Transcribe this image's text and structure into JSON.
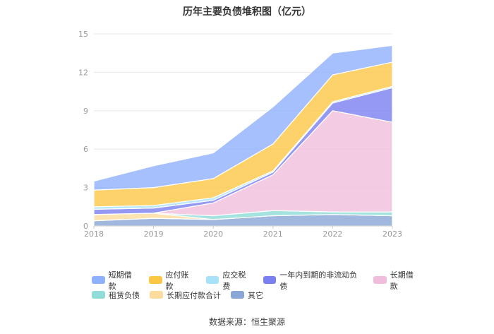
{
  "chart_data": {
    "type": "area",
    "title": "历年主要负债堆积图（亿元）",
    "x": [
      "2018",
      "2019",
      "2020",
      "2021",
      "2022",
      "2023"
    ],
    "ylim": [
      0,
      15
    ],
    "yticks": [
      "0",
      "3",
      "6",
      "9",
      "12",
      "15"
    ],
    "grid": true,
    "legend_position": "bottom",
    "stack_order_bottom_to_top": [
      "其它",
      "长期应付款合计",
      "租赁负债",
      "长期借款",
      "一年内到期的非流动负债",
      "应交税费",
      "应付账款",
      "短期借款"
    ],
    "series": [
      {
        "name": "短期借款",
        "color": "#8fb0fb",
        "values": [
          0.7,
          1.7,
          2.0,
          2.9,
          1.7,
          1.3
        ]
      },
      {
        "name": "应付账款",
        "color": "#fcc745",
        "values": [
          1.3,
          1.4,
          1.5,
          2.1,
          2.1,
          1.9
        ]
      },
      {
        "name": "应交税费",
        "color": "#a7e2f8",
        "values": [
          0.2,
          0.2,
          0.2,
          0.1,
          0.1,
          0.1
        ]
      },
      {
        "name": "一年内到期的非流动负债",
        "color": "#7b80f0",
        "values": [
          0.4,
          0.4,
          0.2,
          0.2,
          0.6,
          2.7
        ]
      },
      {
        "name": "长期借款",
        "color": "#f0bedc",
        "values": [
          0.0,
          0.0,
          1.0,
          2.8,
          7.9,
          7.0
        ]
      },
      {
        "name": "租赁负债",
        "color": "#8fdcd8",
        "values": [
          0.0,
          0.0,
          0.3,
          0.4,
          0.2,
          0.3
        ]
      },
      {
        "name": "长期应付款合计",
        "color": "#fcdc9c",
        "values": [
          0.5,
          0.4,
          0.0,
          0.0,
          0.0,
          0.0
        ]
      },
      {
        "name": "其它",
        "color": "#8aa6d6",
        "values": [
          0.4,
          0.6,
          0.5,
          0.8,
          0.9,
          0.8
        ]
      }
    ]
  },
  "legend": {
    "rows": [
      [
        "短期借款",
        "应付账款",
        "应交税费",
        "一年内到期的非流动负债",
        "长期借款"
      ],
      [
        "租赁负债",
        "长期应付款合计",
        "其它"
      ]
    ]
  },
  "source": "数据来源：恒生聚源"
}
